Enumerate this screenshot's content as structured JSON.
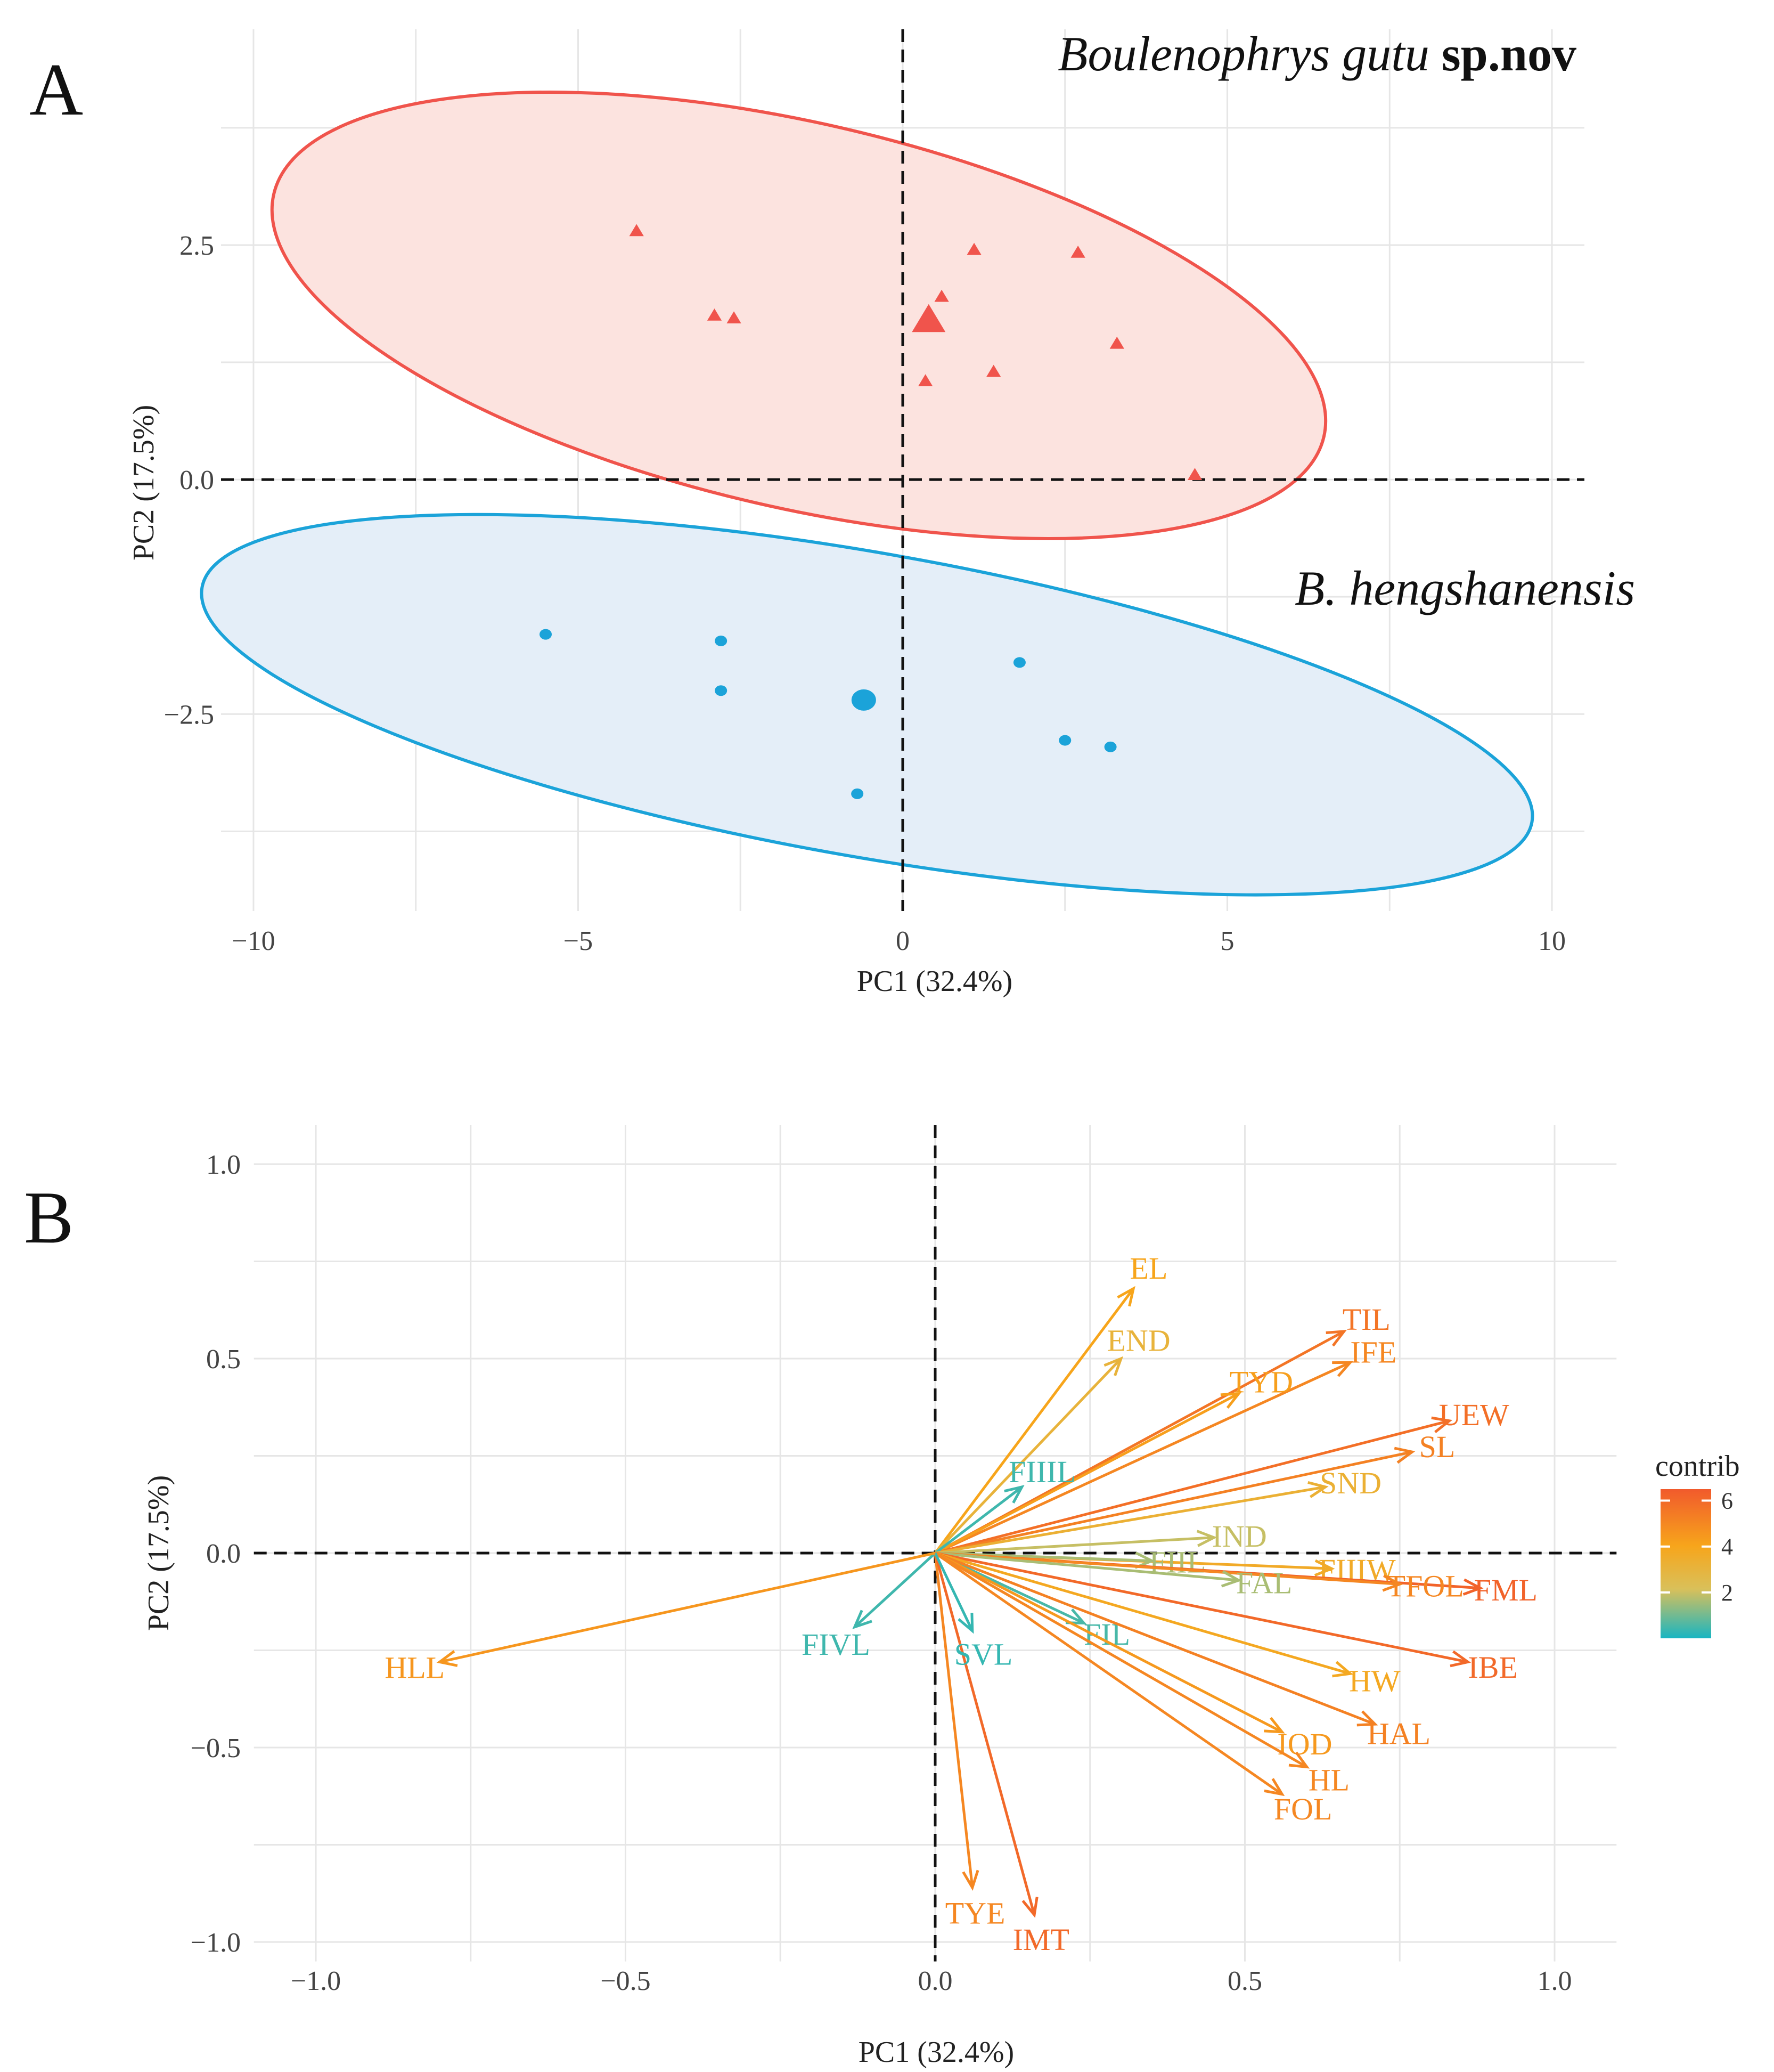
{
  "panels": {
    "a_letter": "A",
    "b_letter": "B"
  },
  "chart_data": [
    {
      "type": "scatter",
      "panel": "A",
      "xlabel": "PC1 (32.4%)",
      "ylabel": "PC2 (17.5%)",
      "xlim": [
        -10.5,
        10.5
      ],
      "ylim": [
        -4.6,
        4.8
      ],
      "xticks": [
        {
          "value": -10,
          "label": "−10"
        },
        {
          "value": -5,
          "label": "−5"
        },
        {
          "value": 0,
          "label": "0"
        },
        {
          "value": 5,
          "label": "5"
        },
        {
          "value": 10,
          "label": "10"
        }
      ],
      "yticks": [
        {
          "value": 2.5,
          "label": "2.5"
        },
        {
          "value": 0,
          "label": "0.0"
        },
        {
          "value": -2.5,
          "label": "−2.5"
        }
      ],
      "groups": [
        {
          "name": "Boulenophrys gutu",
          "name_suffix": "sp.nov",
          "color": "#F0544C",
          "fill": "#FCE3DF",
          "marker": "triangle",
          "mean": [
            0.4,
            1.7
          ],
          "ellipse": {
            "cx": -1.6,
            "cy": 1.75,
            "rx": 8.3,
            "ry": 2.05,
            "angle": -13
          },
          "points": [
            [
              -4.1,
              2.65
            ],
            [
              -2.9,
              1.75
            ],
            [
              -2.6,
              1.72
            ],
            [
              1.1,
              2.45
            ],
            [
              2.7,
              2.42
            ],
            [
              0.6,
              1.95
            ],
            [
              3.3,
              1.45
            ],
            [
              0.35,
              1.05
            ],
            [
              1.4,
              1.15
            ],
            [
              4.5,
              0.05
            ]
          ]
        },
        {
          "name": "B. hengshanensis",
          "color": "#1BA3D9",
          "fill": "#E4EEF8",
          "marker": "circle",
          "mean": [
            -0.6,
            -2.35
          ],
          "ellipse": {
            "cx": -0.55,
            "cy": -2.4,
            "rx": 10.4,
            "ry": 1.62,
            "angle": -10
          },
          "points": [
            [
              -5.5,
              -1.65
            ],
            [
              -2.8,
              -1.72
            ],
            [
              -2.8,
              -2.25
            ],
            [
              1.8,
              -1.95
            ],
            [
              2.5,
              -2.78
            ],
            [
              3.2,
              -2.85
            ],
            [
              -0.7,
              -3.35
            ]
          ]
        }
      ]
    },
    {
      "type": "biplot",
      "panel": "B",
      "xlabel": "PC1 (32.4%)",
      "ylabel": "PC2 (17.5%)",
      "xlim": [
        -1.1,
        1.1
      ],
      "ylim": [
        -1.05,
        1.1
      ],
      "xticks": [
        {
          "value": -1,
          "label": "−1.0"
        },
        {
          "value": -0.5,
          "label": "−0.5"
        },
        {
          "value": 0,
          "label": "0.0"
        },
        {
          "value": 0.5,
          "label": "0.5"
        },
        {
          "value": 1,
          "label": "1.0"
        }
      ],
      "yticks": [
        {
          "value": 1,
          "label": "1.0"
        },
        {
          "value": 0.5,
          "label": "0.5"
        },
        {
          "value": 0,
          "label": "0.0"
        },
        {
          "value": -0.5,
          "label": "−0.5"
        },
        {
          "value": -1,
          "label": "−1.0"
        }
      ],
      "legend": {
        "title": "contrib",
        "position": "right",
        "min": 0,
        "max": 6.5,
        "ticks": [
          6,
          4,
          2
        ]
      },
      "variables": [
        {
          "name": "EL",
          "x": 0.32,
          "y": 0.68,
          "contrib": 4.0
        },
        {
          "name": "END",
          "x": 0.3,
          "y": 0.5,
          "contrib": 3.0
        },
        {
          "name": "TIL",
          "x": 0.66,
          "y": 0.57,
          "contrib": 5.6
        },
        {
          "name": "IFE",
          "x": 0.67,
          "y": 0.49,
          "contrib": 5.0
        },
        {
          "name": "TYD",
          "x": 0.49,
          "y": 0.41,
          "contrib": 4.2
        },
        {
          "name": "UEW",
          "x": 0.83,
          "y": 0.34,
          "contrib": 5.8
        },
        {
          "name": "SL",
          "x": 0.77,
          "y": 0.26,
          "contrib": 5.2
        },
        {
          "name": "FIIIL",
          "x": 0.14,
          "y": 0.17,
          "contrib": 0.4
        },
        {
          "name": "SND",
          "x": 0.63,
          "y": 0.17,
          "contrib": 3.2
        },
        {
          "name": "IND",
          "x": 0.45,
          "y": 0.04,
          "contrib": 1.8
        },
        {
          "name": "FIIIW",
          "x": 0.64,
          "y": -0.04,
          "contrib": 3.6
        },
        {
          "name": "FIIL",
          "x": 0.35,
          "y": -0.02,
          "contrib": 1.5
        },
        {
          "name": "FML",
          "x": 0.88,
          "y": -0.09,
          "contrib": 6.2
        },
        {
          "name": "TFOL",
          "x": 0.75,
          "y": -0.08,
          "contrib": 5.0
        },
        {
          "name": "FAL",
          "x": 0.49,
          "y": -0.07,
          "contrib": 1.5
        },
        {
          "name": "FIL",
          "x": 0.24,
          "y": -0.18,
          "contrib": 0.5
        },
        {
          "name": "IBE",
          "x": 0.86,
          "y": -0.28,
          "contrib": 6.0
        },
        {
          "name": "HW",
          "x": 0.67,
          "y": -0.31,
          "contrib": 3.8
        },
        {
          "name": "HAL",
          "x": 0.71,
          "y": -0.44,
          "contrib": 5.2
        },
        {
          "name": "IOD",
          "x": 0.56,
          "y": -0.46,
          "contrib": 4.4
        },
        {
          "name": "HL",
          "x": 0.6,
          "y": -0.55,
          "contrib": 5.0
        },
        {
          "name": "FOL",
          "x": 0.56,
          "y": -0.62,
          "contrib": 5.0
        },
        {
          "name": "TYE",
          "x": 0.06,
          "y": -0.86,
          "contrib": 5.0
        },
        {
          "name": "IMT",
          "x": 0.16,
          "y": -0.93,
          "contrib": 6.0
        },
        {
          "name": "SVL",
          "x": 0.06,
          "y": -0.2,
          "contrib": 0.3
        },
        {
          "name": "FIVL",
          "x": -0.13,
          "y": -0.19,
          "contrib": 0.4
        },
        {
          "name": "HLL",
          "x": -0.8,
          "y": -0.28,
          "contrib": 4.5
        }
      ]
    }
  ]
}
